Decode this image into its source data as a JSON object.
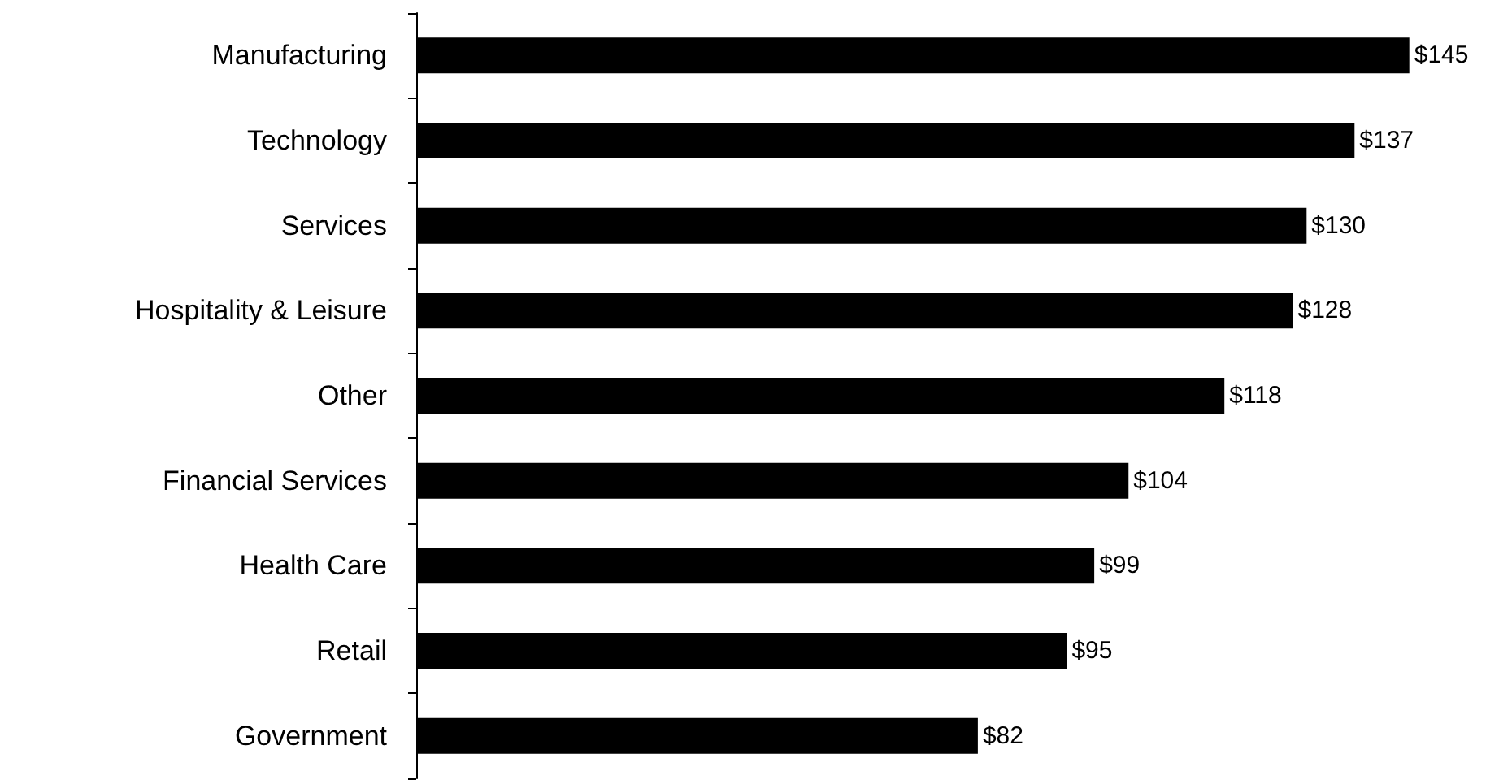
{
  "chart_data": {
    "type": "bar",
    "orientation": "horizontal",
    "categories": [
      "Manufacturing",
      "Technology",
      "Services",
      "Hospitality & Leisure",
      "Other",
      "Financial Services",
      "Health Care",
      "Retail",
      "Government"
    ],
    "values": [
      145,
      137,
      130,
      128,
      118,
      104,
      99,
      95,
      82
    ],
    "value_labels": [
      "$145",
      "$137",
      "$130",
      "$128",
      "$118",
      "$104",
      "$99",
      "$95",
      "$82"
    ],
    "color": "#000000"
  }
}
